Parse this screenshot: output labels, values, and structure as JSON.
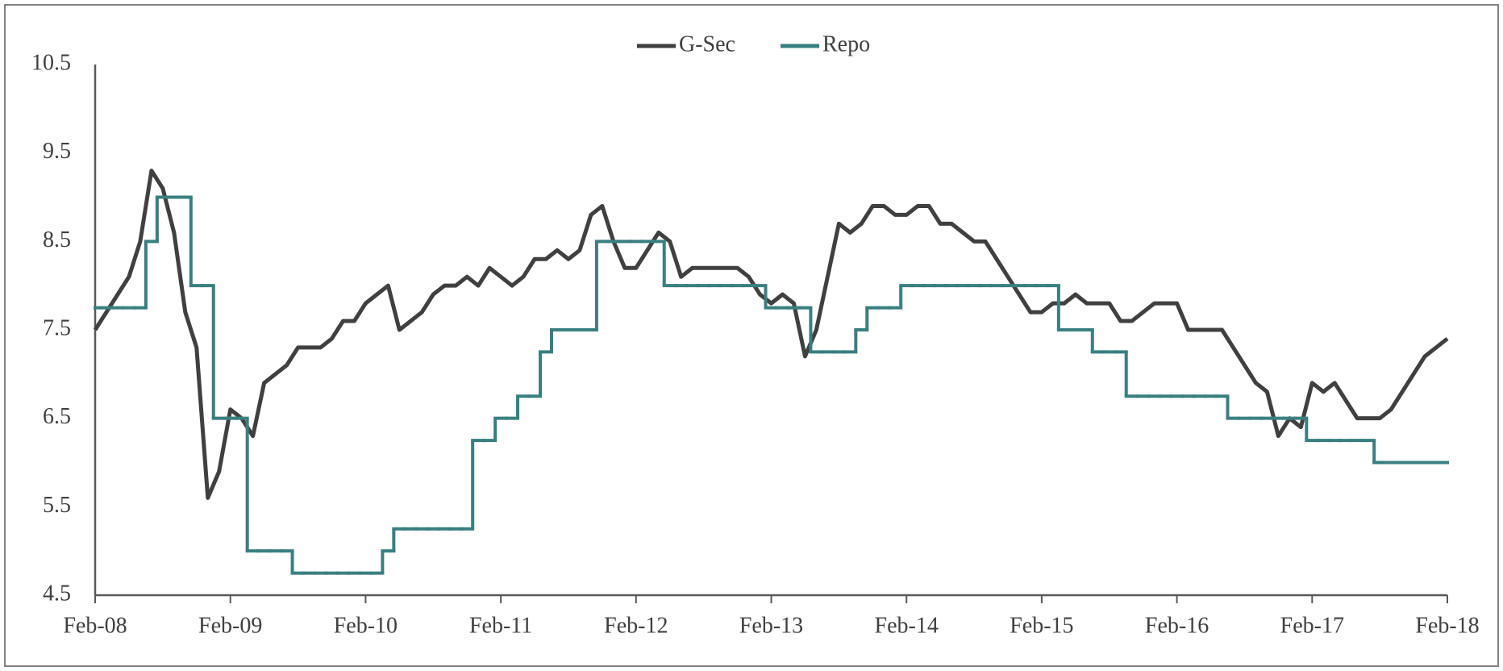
{
  "chart_data": {
    "type": "line",
    "categories": [
      "Feb-08",
      null,
      null,
      null,
      null,
      null,
      null,
      null,
      null,
      null,
      null,
      null,
      "Feb-09",
      null,
      null,
      null,
      null,
      null,
      null,
      null,
      null,
      null,
      null,
      null,
      "Feb-10",
      null,
      null,
      null,
      null,
      null,
      null,
      null,
      null,
      null,
      null,
      null,
      "Feb-11",
      null,
      null,
      null,
      null,
      null,
      null,
      null,
      null,
      null,
      null,
      null,
      "Feb-12",
      null,
      null,
      null,
      null,
      null,
      null,
      null,
      null,
      null,
      null,
      null,
      "Feb-13",
      null,
      null,
      null,
      null,
      null,
      null,
      null,
      null,
      null,
      null,
      null,
      "Feb-14",
      null,
      null,
      null,
      null,
      null,
      null,
      null,
      null,
      null,
      null,
      null,
      "Feb-15",
      null,
      null,
      null,
      null,
      null,
      null,
      null,
      null,
      null,
      null,
      null,
      "Feb-16",
      null,
      null,
      null,
      null,
      null,
      null,
      null,
      null,
      null,
      null,
      null,
      "Feb-17",
      null,
      null,
      null,
      null,
      null,
      null,
      null,
      null,
      null,
      null,
      null,
      "Feb-18"
    ],
    "series": [
      {
        "name": "G-Sec",
        "color": "#404040",
        "values": [
          7.5,
          7.7,
          7.9,
          8.1,
          8.5,
          9.3,
          9.1,
          8.6,
          7.7,
          7.3,
          5.6,
          5.9,
          6.6,
          6.5,
          6.3,
          6.9,
          7.0,
          7.1,
          7.3,
          7.3,
          7.3,
          7.4,
          7.6,
          7.6,
          7.8,
          7.9,
          8.0,
          7.5,
          7.6,
          7.7,
          7.9,
          8.0,
          8.0,
          8.1,
          8.0,
          8.2,
          8.1,
          8.0,
          8.1,
          8.3,
          8.3,
          8.4,
          8.3,
          8.4,
          8.8,
          8.9,
          8.5,
          8.2,
          8.2,
          8.4,
          8.6,
          8.5,
          8.1,
          8.2,
          8.2,
          8.2,
          8.2,
          8.2,
          8.1,
          7.9,
          7.8,
          7.9,
          7.8,
          7.2,
          7.5,
          8.1,
          8.7,
          8.6,
          8.7,
          8.9,
          8.9,
          8.8,
          8.8,
          8.9,
          8.9,
          8.7,
          8.7,
          8.6,
          8.5,
          8.5,
          8.3,
          8.1,
          7.9,
          7.7,
          7.7,
          7.8,
          7.8,
          7.9,
          7.8,
          7.8,
          7.8,
          7.6,
          7.6,
          7.7,
          7.8,
          7.8,
          7.8,
          7.5,
          7.5,
          7.5,
          7.5,
          7.3,
          7.1,
          6.9,
          6.8,
          6.3,
          6.5,
          6.4,
          6.9,
          6.8,
          6.9,
          6.7,
          6.5,
          6.5,
          6.5,
          6.6,
          6.8,
          7.0,
          7.2,
          7.3,
          7.4
        ]
      },
      {
        "name": "Repo",
        "color": "#3a7f80",
        "step": true,
        "values": [
          7.75,
          7.75,
          7.75,
          7.75,
          7.75,
          8.5,
          9.0,
          9.0,
          9.0,
          8.0,
          8.0,
          6.5,
          6.5,
          6.5,
          5.0,
          5.0,
          5.0,
          5.0,
          4.75,
          4.75,
          4.75,
          4.75,
          4.75,
          4.75,
          4.75,
          4.75,
          5.0,
          5.25,
          5.25,
          5.25,
          5.25,
          5.25,
          5.25,
          5.25,
          6.25,
          6.25,
          6.5,
          6.5,
          6.75,
          6.75,
          7.25,
          7.5,
          7.5,
          7.5,
          7.5,
          8.5,
          8.5,
          8.5,
          8.5,
          8.5,
          8.5,
          8.0,
          8.0,
          8.0,
          8.0,
          8.0,
          8.0,
          8.0,
          8.0,
          8.0,
          7.75,
          7.75,
          7.75,
          7.75,
          7.25,
          7.25,
          7.25,
          7.25,
          7.5,
          7.75,
          7.75,
          7.75,
          8.0,
          8.0,
          8.0,
          8.0,
          8.0,
          8.0,
          8.0,
          8.0,
          8.0,
          8.0,
          8.0,
          8.0,
          8.0,
          8.0,
          7.5,
          7.5,
          7.5,
          7.25,
          7.25,
          7.25,
          6.75,
          6.75,
          6.75,
          6.75,
          6.75,
          6.75,
          6.75,
          6.75,
          6.75,
          6.5,
          6.5,
          6.5,
          6.5,
          6.5,
          6.5,
          6.5,
          6.25,
          6.25,
          6.25,
          6.25,
          6.25,
          6.25,
          6.0,
          6.0,
          6.0,
          6.0,
          6.0,
          6.0,
          6.0
        ]
      }
    ],
    "ylim": [
      4.5,
      10.5
    ],
    "yticks": [
      4.5,
      5.5,
      6.5,
      7.5,
      8.5,
      9.5,
      10.5
    ],
    "grid": false,
    "legend": "top"
  }
}
